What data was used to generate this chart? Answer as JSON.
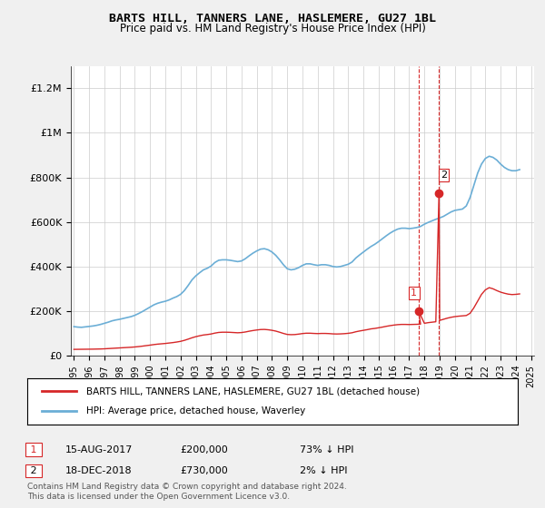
{
  "title": "BARTS HILL, TANNERS LANE, HASLEMERE, GU27 1BL",
  "subtitle": "Price paid vs. HM Land Registry's House Price Index (HPI)",
  "legend_line1": "BARTS HILL, TANNERS LANE, HASLEMERE, GU27 1BL (detached house)",
  "legend_line2": "HPI: Average price, detached house, Waverley",
  "annotation1_label": "1",
  "annotation1_date": "15-AUG-2017",
  "annotation1_price": "£200,000",
  "annotation1_hpi": "73% ↓ HPI",
  "annotation2_label": "2",
  "annotation2_date": "18-DEC-2018",
  "annotation2_price": "£730,000",
  "annotation2_hpi": "2% ↓ HPI",
  "footer": "Contains HM Land Registry data © Crown copyright and database right 2024.\nThis data is licensed under the Open Government Licence v3.0.",
  "hpi_color": "#6baed6",
  "price_color": "#d62728",
  "vline_color": "#d62728",
  "background_color": "#f0f0f0",
  "plot_background": "#ffffff",
  "ylim": [
    0,
    1300000
  ],
  "yticks": [
    0,
    200000,
    400000,
    600000,
    800000,
    1000000,
    1200000
  ],
  "ytick_labels": [
    "£0",
    "£200K",
    "£400K",
    "£600K",
    "£800K",
    "£1M",
    "£1.2M"
  ],
  "sale1_year": 2017.62,
  "sale1_price": 200000,
  "sale2_year": 2018.96,
  "sale2_price": 730000,
  "hpi_years": [
    1995.0,
    1995.25,
    1995.5,
    1995.75,
    1996.0,
    1996.25,
    1996.5,
    1996.75,
    1997.0,
    1997.25,
    1997.5,
    1997.75,
    1998.0,
    1998.25,
    1998.5,
    1998.75,
    1999.0,
    1999.25,
    1999.5,
    1999.75,
    2000.0,
    2000.25,
    2000.5,
    2000.75,
    2001.0,
    2001.25,
    2001.5,
    2001.75,
    2002.0,
    2002.25,
    2002.5,
    2002.75,
    2003.0,
    2003.25,
    2003.5,
    2003.75,
    2004.0,
    2004.25,
    2004.5,
    2004.75,
    2005.0,
    2005.25,
    2005.5,
    2005.75,
    2006.0,
    2006.25,
    2006.5,
    2006.75,
    2007.0,
    2007.25,
    2007.5,
    2007.75,
    2008.0,
    2008.25,
    2008.5,
    2008.75,
    2009.0,
    2009.25,
    2009.5,
    2009.75,
    2010.0,
    2010.25,
    2010.5,
    2010.75,
    2011.0,
    2011.25,
    2011.5,
    2011.75,
    2012.0,
    2012.25,
    2012.5,
    2012.75,
    2013.0,
    2013.25,
    2013.5,
    2013.75,
    2014.0,
    2014.25,
    2014.5,
    2014.75,
    2015.0,
    2015.25,
    2015.5,
    2015.75,
    2016.0,
    2016.25,
    2016.5,
    2016.75,
    2017.0,
    2017.25,
    2017.5,
    2017.75,
    2018.0,
    2018.25,
    2018.5,
    2018.75,
    2019.0,
    2019.25,
    2019.5,
    2019.75,
    2020.0,
    2020.25,
    2020.5,
    2020.75,
    2021.0,
    2021.25,
    2021.5,
    2021.75,
    2022.0,
    2022.25,
    2022.5,
    2022.75,
    2023.0,
    2023.25,
    2023.5,
    2023.75,
    2024.0,
    2024.25
  ],
  "hpi_values": [
    130000,
    128000,
    127000,
    129000,
    131000,
    133000,
    136000,
    140000,
    145000,
    150000,
    156000,
    160000,
    163000,
    167000,
    171000,
    175000,
    181000,
    189000,
    198000,
    208000,
    218000,
    228000,
    235000,
    240000,
    244000,
    250000,
    258000,
    265000,
    275000,
    292000,
    315000,
    340000,
    358000,
    372000,
    385000,
    392000,
    402000,
    418000,
    428000,
    430000,
    430000,
    428000,
    425000,
    422000,
    425000,
    435000,
    448000,
    460000,
    470000,
    478000,
    480000,
    475000,
    465000,
    450000,
    430000,
    408000,
    390000,
    385000,
    388000,
    395000,
    405000,
    412000,
    412000,
    408000,
    405000,
    408000,
    408000,
    405000,
    400000,
    398000,
    400000,
    405000,
    410000,
    420000,
    438000,
    452000,
    465000,
    478000,
    490000,
    500000,
    512000,
    525000,
    538000,
    550000,
    560000,
    568000,
    572000,
    572000,
    570000,
    572000,
    575000,
    580000,
    590000,
    598000,
    605000,
    612000,
    618000,
    625000,
    635000,
    645000,
    652000,
    655000,
    658000,
    672000,
    710000,
    765000,
    820000,
    860000,
    885000,
    895000,
    890000,
    878000,
    860000,
    845000,
    835000,
    830000,
    830000,
    835000
  ],
  "price_line_years": [
    1995.0,
    1995.25,
    1995.5,
    1995.75,
    1996.0,
    1996.25,
    1996.5,
    1996.75,
    1997.0,
    1997.25,
    1997.5,
    1997.75,
    1998.0,
    1998.25,
    1998.5,
    1998.75,
    1999.0,
    1999.25,
    1999.5,
    1999.75,
    2000.0,
    2000.25,
    2000.5,
    2000.75,
    2001.0,
    2001.25,
    2001.5,
    2001.75,
    2002.0,
    2002.25,
    2002.5,
    2002.75,
    2003.0,
    2003.25,
    2003.5,
    2003.75,
    2004.0,
    2004.25,
    2004.5,
    2004.75,
    2005.0,
    2005.25,
    2005.5,
    2005.75,
    2006.0,
    2006.25,
    2006.5,
    2006.75,
    2007.0,
    2007.25,
    2007.5,
    2007.75,
    2008.0,
    2008.25,
    2008.5,
    2008.75,
    2009.0,
    2009.25,
    2009.5,
    2009.75,
    2010.0,
    2010.25,
    2010.5,
    2010.75,
    2011.0,
    2011.25,
    2011.5,
    2011.75,
    2012.0,
    2012.25,
    2012.5,
    2012.75,
    2013.0,
    2013.25,
    2013.5,
    2013.75,
    2014.0,
    2014.25,
    2014.5,
    2014.75,
    2015.0,
    2015.25,
    2015.5,
    2015.75,
    2016.0,
    2016.25,
    2016.5,
    2016.75,
    2017.0,
    2017.25,
    2017.5,
    2017.75,
    2017.62,
    2018.0,
    2018.25,
    2018.5,
    2018.75,
    2018.96,
    2019.0,
    2019.25,
    2019.5,
    2019.75,
    2020.0,
    2020.25,
    2020.5,
    2020.75,
    2021.0,
    2021.25,
    2021.5,
    2021.75,
    2022.0,
    2022.25,
    2022.5,
    2022.75,
    2023.0,
    2023.25,
    2023.5,
    2023.75,
    2024.0,
    2024.25
  ],
  "price_line_values": [
    28000,
    28200,
    28400,
    28600,
    28800,
    29000,
    29400,
    29800,
    30500,
    31500,
    32500,
    33500,
    34500,
    35500,
    36500,
    37500,
    38800,
    40500,
    42500,
    44800,
    47000,
    49500,
    51500,
    53000,
    54500,
    56500,
    58500,
    61000,
    64000,
    68500,
    74000,
    80000,
    85000,
    89000,
    92500,
    94500,
    97000,
    101000,
    104000,
    105000,
    105000,
    104500,
    103500,
    102500,
    103500,
    106000,
    109500,
    112500,
    115000,
    117000,
    117500,
    116000,
    113500,
    110000,
    105000,
    99500,
    95000,
    94000,
    94500,
    96500,
    99000,
    100500,
    100500,
    99500,
    98800,
    99500,
    99500,
    98800,
    97500,
    97000,
    97500,
    98500,
    100000,
    102500,
    107000,
    110500,
    113500,
    116500,
    120000,
    122000,
    125000,
    128000,
    131500,
    134500,
    137000,
    139000,
    140000,
    140000,
    139500,
    140000,
    140500,
    141500,
    200000,
    145000,
    148000,
    150000,
    152000,
    730000,
    158000,
    163000,
    168000,
    172000,
    175000,
    177000,
    178500,
    180000,
    190000,
    215000,
    245000,
    275000,
    295000,
    305000,
    300000,
    292000,
    285000,
    280000,
    276000,
    274000,
    275000,
    277000
  ],
  "xtick_years": [
    1995,
    1996,
    1997,
    1998,
    1999,
    2000,
    2001,
    2002,
    2003,
    2004,
    2005,
    2006,
    2007,
    2008,
    2009,
    2010,
    2011,
    2012,
    2013,
    2014,
    2015,
    2016,
    2017,
    2018,
    2019,
    2020,
    2021,
    2022,
    2023,
    2024,
    2025
  ]
}
